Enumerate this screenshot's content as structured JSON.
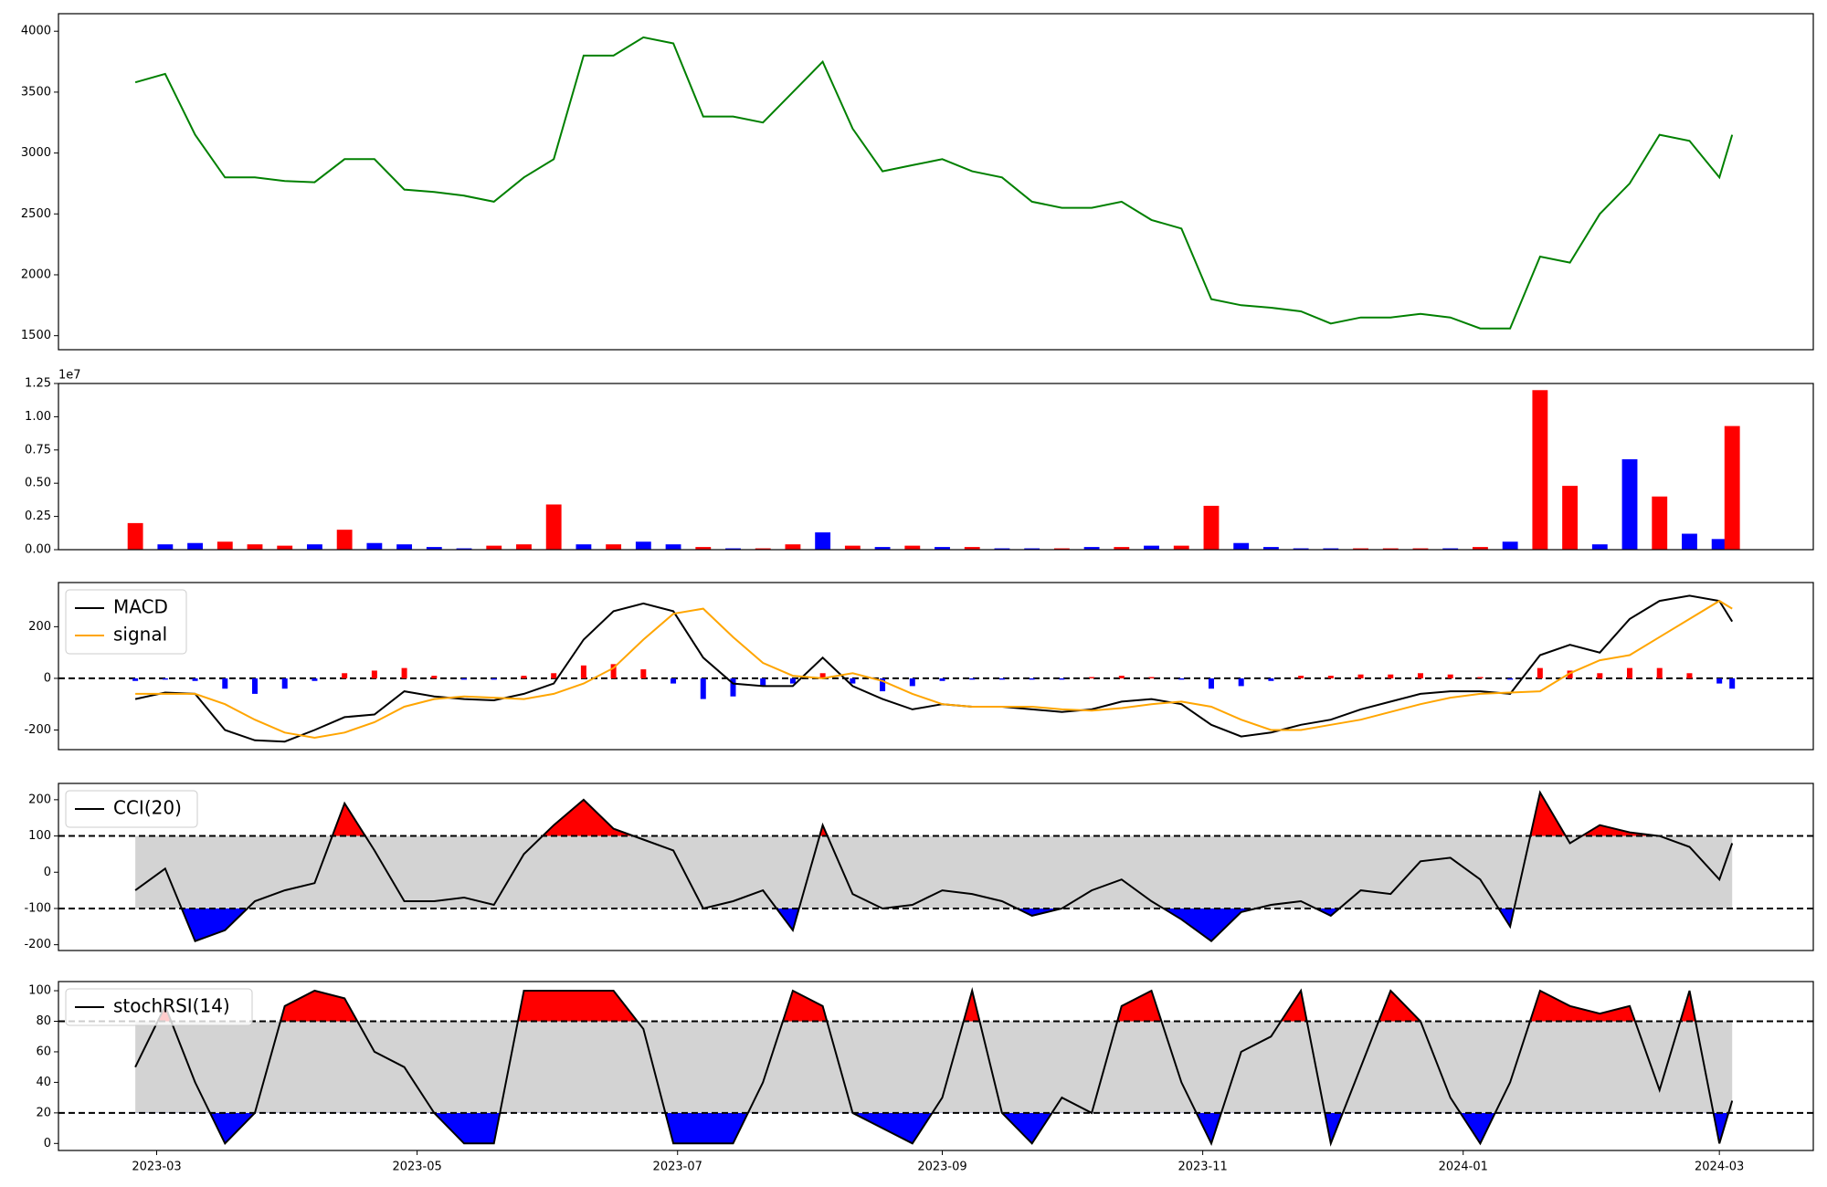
{
  "chart_data": [
    {
      "type": "line",
      "x": [
        "2023-02-24",
        "2023-03-03",
        "2023-03-10",
        "2023-03-17",
        "2023-03-24",
        "2023-03-31",
        "2023-04-07",
        "2023-04-14",
        "2023-04-21",
        "2023-04-28",
        "2023-05-05",
        "2023-05-12",
        "2023-05-19",
        "2023-05-26",
        "2023-06-02",
        "2023-06-09",
        "2023-06-16",
        "2023-06-23",
        "2023-06-30",
        "2023-07-07",
        "2023-07-14",
        "2023-07-21",
        "2023-07-28",
        "2023-08-04",
        "2023-08-11",
        "2023-08-18",
        "2023-08-25",
        "2023-09-01",
        "2023-09-08",
        "2023-09-15",
        "2023-09-22",
        "2023-09-29",
        "2023-10-06",
        "2023-10-13",
        "2023-10-20",
        "2023-10-27",
        "2023-11-03",
        "2023-11-10",
        "2023-11-17",
        "2023-11-24",
        "2023-12-01",
        "2023-12-08",
        "2023-12-15",
        "2023-12-22",
        "2023-12-29",
        "2024-01-05",
        "2024-01-12",
        "2024-01-19",
        "2024-01-26",
        "2024-02-02",
        "2024-02-09",
        "2024-02-16",
        "2024-02-23",
        "2024-03-01",
        "2024-03-04"
      ],
      "values": [
        3580,
        3650,
        3150,
        2800,
        2800,
        2770,
        2760,
        2950,
        2950,
        2700,
        2680,
        2650,
        2600,
        2800,
        2950,
        3800,
        3800,
        3950,
        3900,
        3300,
        3300,
        3250,
        3500,
        3750,
        3200,
        2850,
        2900,
        2950,
        2850,
        2800,
        2600,
        2550,
        2550,
        2600,
        2450,
        2380,
        1800,
        1750,
        1730,
        1700,
        1600,
        1650,
        1650,
        1680,
        1650,
        1560,
        1560,
        2150,
        2100,
        2500,
        2750,
        3150,
        3100,
        2800,
        3150
      ],
      "color": "#008000",
      "xlim": [
        "2023-02-06",
        "2024-03-23"
      ],
      "ylim": [
        1385,
        4144
      ],
      "yticks": [
        1500,
        2000,
        2500,
        3000,
        3500,
        4000
      ]
    },
    {
      "type": "bar",
      "x": [
        "2023-02-24",
        "2023-03-03",
        "2023-03-10",
        "2023-03-17",
        "2023-03-24",
        "2023-03-31",
        "2023-04-07",
        "2023-04-14",
        "2023-04-21",
        "2023-04-28",
        "2023-05-05",
        "2023-05-12",
        "2023-05-19",
        "2023-05-26",
        "2023-06-02",
        "2023-06-09",
        "2023-06-16",
        "2023-06-23",
        "2023-06-30",
        "2023-07-07",
        "2023-07-14",
        "2023-07-21",
        "2023-07-28",
        "2023-08-04",
        "2023-08-11",
        "2023-08-18",
        "2023-08-25",
        "2023-09-01",
        "2023-09-08",
        "2023-09-15",
        "2023-09-22",
        "2023-09-29",
        "2023-10-06",
        "2023-10-13",
        "2023-10-20",
        "2023-10-27",
        "2023-11-03",
        "2023-11-10",
        "2023-11-17",
        "2023-11-24",
        "2023-12-01",
        "2023-12-08",
        "2023-12-15",
        "2023-12-22",
        "2023-12-29",
        "2024-01-05",
        "2024-01-12",
        "2024-01-19",
        "2024-01-26",
        "2024-02-02",
        "2024-02-09",
        "2024-02-16",
        "2024-02-23",
        "2024-03-01",
        "2024-03-04"
      ],
      "values": [
        2000000,
        400000,
        500000,
        600000,
        400000,
        300000,
        400000,
        1500000,
        500000,
        400000,
        200000,
        100000,
        300000,
        400000,
        3400000,
        400000,
        400000,
        600000,
        400000,
        200000,
        100000,
        100000,
        400000,
        1300000,
        300000,
        200000,
        300000,
        200000,
        200000,
        100000,
        100000,
        100000,
        200000,
        200000,
        300000,
        300000,
        3300000,
        500000,
        200000,
        100000,
        100000,
        100000,
        100000,
        100000,
        100000,
        200000,
        600000,
        12000000,
        4800000,
        400000,
        6800000,
        4000000,
        1200000,
        800000,
        9300000
      ],
      "colors": [
        "#ff0000",
        "#0000ff",
        "#0000ff",
        "#ff0000",
        "#ff0000",
        "#ff0000",
        "#0000ff",
        "#ff0000",
        "#0000ff",
        "#0000ff",
        "#0000ff",
        "#0000ff",
        "#ff0000",
        "#ff0000",
        "#ff0000",
        "#0000ff",
        "#ff0000",
        "#0000ff",
        "#0000ff",
        "#ff0000",
        "#0000ff",
        "#ff0000",
        "#ff0000",
        "#0000ff",
        "#ff0000",
        "#0000ff",
        "#ff0000",
        "#0000ff",
        "#ff0000",
        "#0000ff",
        "#0000ff",
        "#ff0000",
        "#0000ff",
        "#ff0000",
        "#0000ff",
        "#ff0000",
        "#ff0000",
        "#0000ff",
        "#0000ff",
        "#0000ff",
        "#0000ff",
        "#ff0000",
        "#ff0000",
        "#ff0000",
        "#0000ff",
        "#ff0000",
        "#0000ff",
        "#ff0000",
        "#ff0000",
        "#0000ff",
        "#0000ff",
        "#ff0000",
        "#0000ff",
        "#0000ff",
        "#ff0000"
      ],
      "xlim": [
        "2023-02-06",
        "2024-03-23"
      ],
      "ylim": [
        0,
        12500000
      ],
      "yticks": [
        {
          "value": 0,
          "label": "0.00"
        },
        {
          "value": 2500000,
          "label": "0.25"
        },
        {
          "value": 5000000,
          "label": "0.50"
        },
        {
          "value": 7500000,
          "label": "0.75"
        },
        {
          "value": 10000000,
          "label": "1.00"
        },
        {
          "value": 12500000,
          "label": "1.25"
        }
      ],
      "offset_label": "1e7"
    },
    {
      "type": "line",
      "x": [
        "2023-02-24",
        "2023-03-03",
        "2023-03-10",
        "2023-03-17",
        "2023-03-24",
        "2023-03-31",
        "2023-04-07",
        "2023-04-14",
        "2023-04-21",
        "2023-04-28",
        "2023-05-05",
        "2023-05-12",
        "2023-05-19",
        "2023-05-26",
        "2023-06-02",
        "2023-06-09",
        "2023-06-16",
        "2023-06-23",
        "2023-06-30",
        "2023-07-07",
        "2023-07-14",
        "2023-07-21",
        "2023-07-28",
        "2023-08-04",
        "2023-08-11",
        "2023-08-18",
        "2023-08-25",
        "2023-09-01",
        "2023-09-08",
        "2023-09-15",
        "2023-09-22",
        "2023-09-29",
        "2023-10-06",
        "2023-10-13",
        "2023-10-20",
        "2023-10-27",
        "2023-11-03",
        "2023-11-10",
        "2023-11-17",
        "2023-11-24",
        "2023-12-01",
        "2023-12-08",
        "2023-12-15",
        "2023-12-22",
        "2023-12-29",
        "2024-01-05",
        "2024-01-12",
        "2024-01-19",
        "2024-01-26",
        "2024-02-02",
        "2024-02-09",
        "2024-02-16",
        "2024-02-23",
        "2024-03-01",
        "2024-03-04"
      ],
      "series": [
        {
          "name": "MACD",
          "color": "#000000",
          "values": [
            -80,
            -55,
            -60,
            -200,
            -240,
            -245,
            -200,
            -150,
            -140,
            -50,
            -70,
            -80,
            -85,
            -60,
            -20,
            150,
            260,
            290,
            260,
            80,
            -20,
            -30,
            -30,
            80,
            -30,
            -80,
            -120,
            -100,
            -110,
            -110,
            -120,
            -130,
            -120,
            -90,
            -80,
            -100,
            -180,
            -225,
            -210,
            -180,
            -160,
            -120,
            -90,
            -60,
            -50,
            -50,
            -60,
            90,
            130,
            100,
            230,
            300,
            320,
            300,
            220
          ]
        },
        {
          "name": "signal",
          "color": "#ffa500",
          "values": [
            -60,
            -60,
            -60,
            -100,
            -160,
            -210,
            -230,
            -210,
            -170,
            -110,
            -80,
            -70,
            -75,
            -80,
            -60,
            -20,
            40,
            150,
            250,
            270,
            160,
            60,
            10,
            0,
            20,
            -10,
            -60,
            -100,
            -110,
            -110,
            -110,
            -120,
            -125,
            -115,
            -100,
            -90,
            -110,
            -160,
            -200,
            -200,
            -180,
            -160,
            -130,
            -100,
            -75,
            -60,
            -55,
            -50,
            20,
            70,
            90,
            160,
            230,
            300,
            270
          ]
        }
      ],
      "histogram": {
        "values": [
          -10,
          -5,
          -10,
          -40,
          -60,
          -40,
          -10,
          20,
          30,
          40,
          10,
          -5,
          -5,
          10,
          20,
          50,
          55,
          35,
          -20,
          -80,
          -70,
          -30,
          -20,
          20,
          -20,
          -50,
          -30,
          -10,
          -5,
          -5,
          -5,
          -5,
          5,
          10,
          5,
          -5,
          -40,
          -30,
          -10,
          10,
          10,
          15,
          15,
          20,
          15,
          5,
          -5,
          40,
          30,
          20,
          40,
          40,
          20,
          -20,
          -40
        ],
        "positive_color": "#ff0000",
        "negative_color": "#0000ff"
      },
      "hlines": [
        0
      ],
      "xlim": [
        "2023-02-06",
        "2024-03-23"
      ],
      "ylim": [
        -276,
        371
      ],
      "yticks": [
        -200,
        0,
        200
      ],
      "legend": "upper left"
    },
    {
      "type": "band",
      "x": [
        "2023-02-24",
        "2023-03-03",
        "2023-03-10",
        "2023-03-17",
        "2023-03-24",
        "2023-03-31",
        "2023-04-07",
        "2023-04-14",
        "2023-04-21",
        "2023-04-28",
        "2023-05-05",
        "2023-05-12",
        "2023-05-19",
        "2023-05-26",
        "2023-06-02",
        "2023-06-09",
        "2023-06-16",
        "2023-06-23",
        "2023-06-30",
        "2023-07-07",
        "2023-07-14",
        "2023-07-21",
        "2023-07-28",
        "2023-08-04",
        "2023-08-11",
        "2023-08-18",
        "2023-08-25",
        "2023-09-01",
        "2023-09-08",
        "2023-09-15",
        "2023-09-22",
        "2023-09-29",
        "2023-10-06",
        "2023-10-13",
        "2023-10-20",
        "2023-10-27",
        "2023-11-03",
        "2023-11-10",
        "2023-11-17",
        "2023-11-24",
        "2023-12-01",
        "2023-12-08",
        "2023-12-15",
        "2023-12-22",
        "2023-12-29",
        "2024-01-05",
        "2024-01-12",
        "2024-01-19",
        "2024-01-26",
        "2024-02-02",
        "2024-02-09",
        "2024-02-16",
        "2024-02-23",
        "2024-03-01",
        "2024-03-04"
      ],
      "series": [
        {
          "name": "CCI(20)",
          "color": "#000000",
          "values": [
            -50,
            10,
            -190,
            -160,
            -80,
            -50,
            -30,
            190,
            60,
            -80,
            -80,
            -70,
            -90,
            50,
            130,
            200,
            120,
            90,
            60,
            -100,
            -80,
            -50,
            -160,
            130,
            -60,
            -100,
            -90,
            -50,
            -60,
            -80,
            -120,
            -100,
            -50,
            -20,
            -80,
            -130,
            -190,
            -110,
            -90,
            -80,
            -120,
            -50,
            -60,
            30,
            40,
            -20,
            -150,
            220,
            80,
            130,
            110,
            100,
            70,
            -20,
            80
          ]
        }
      ],
      "thresholds": [
        -100,
        100
      ],
      "band_color": "#d3d3d3",
      "upper_color": "#ff0000",
      "lower_color": "#0000ff",
      "xlim": [
        "2023-02-06",
        "2024-03-23"
      ],
      "ylim": [
        -216,
        245
      ],
      "yticks": [
        -200,
        -100,
        0,
        100,
        200
      ],
      "legend": "upper left"
    },
    {
      "type": "band",
      "x": [
        "2023-02-24",
        "2023-03-03",
        "2023-03-10",
        "2023-03-17",
        "2023-03-24",
        "2023-03-31",
        "2023-04-07",
        "2023-04-14",
        "2023-04-21",
        "2023-04-28",
        "2023-05-05",
        "2023-05-12",
        "2023-05-19",
        "2023-05-26",
        "2023-06-02",
        "2023-06-09",
        "2023-06-16",
        "2023-06-23",
        "2023-06-30",
        "2023-07-07",
        "2023-07-14",
        "2023-07-21",
        "2023-07-28",
        "2023-08-04",
        "2023-08-11",
        "2023-08-18",
        "2023-08-25",
        "2023-09-01",
        "2023-09-08",
        "2023-09-15",
        "2023-09-22",
        "2023-09-29",
        "2023-10-06",
        "2023-10-13",
        "2023-10-20",
        "2023-10-27",
        "2023-11-03",
        "2023-11-10",
        "2023-11-17",
        "2023-11-24",
        "2023-12-01",
        "2023-12-08",
        "2023-12-15",
        "2023-12-22",
        "2023-12-29",
        "2024-01-05",
        "2024-01-12",
        "2024-01-19",
        "2024-01-26",
        "2024-02-02",
        "2024-02-09",
        "2024-02-16",
        "2024-02-23",
        "2024-03-01",
        "2024-03-04"
      ],
      "series": [
        {
          "name": "stochRSI(14)",
          "color": "#000000",
          "values": [
            50,
            90,
            40,
            0,
            20,
            90,
            100,
            95,
            60,
            50,
            20,
            0,
            0,
            100,
            100,
            100,
            100,
            75,
            0,
            0,
            0,
            40,
            100,
            90,
            20,
            10,
            0,
            30,
            100,
            20,
            0,
            30,
            20,
            90,
            100,
            40,
            0,
            60,
            70,
            100,
            0,
            50,
            100,
            80,
            30,
            0,
            40,
            100,
            90,
            85,
            90,
            35,
            100,
            0,
            28
          ]
        }
      ],
      "thresholds": [
        20,
        80
      ],
      "band_color": "#d3d3d3",
      "upper_color": "#ff0000",
      "lower_color": "#0000ff",
      "xlim": [
        "2023-02-06",
        "2024-03-23"
      ],
      "ylim": [
        -4.6,
        106
      ],
      "yticks": [
        0,
        20,
        40,
        60,
        80,
        100
      ],
      "legend": "upper left",
      "xticks": [
        "2023-03",
        "2023-05",
        "2023-07",
        "2023-09",
        "2023-11",
        "2024-01",
        "2024-03"
      ]
    }
  ]
}
